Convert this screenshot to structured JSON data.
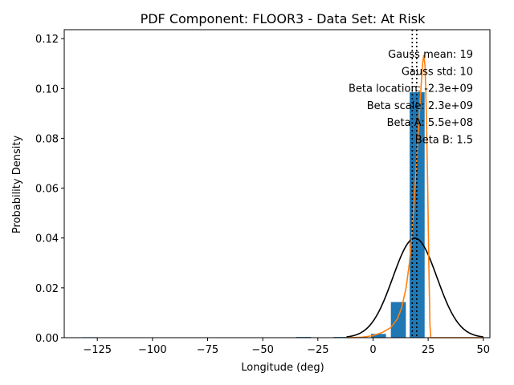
{
  "chart_data": {
    "type": "bar",
    "title": "PDF Component: FLOOR3 - Data Set: At Risk",
    "xlabel": "Longitude (deg)",
    "ylabel": "Probability Density",
    "xlim": [
      -140,
      53
    ],
    "ylim": [
      0,
      0.1236
    ],
    "x_ticks": [
      -125,
      -100,
      -75,
      -50,
      -25,
      0,
      25,
      50
    ],
    "x_tick_labels": [
      "−125",
      "−100",
      "−75",
      "−50",
      "−25",
      "0",
      "25",
      "50"
    ],
    "y_ticks": [
      0.0,
      0.02,
      0.04,
      0.06,
      0.08,
      0.1,
      0.12
    ],
    "y_tick_labels": [
      "0.00",
      "0.02",
      "0.04",
      "0.06",
      "0.08",
      "0.10",
      "0.12"
    ],
    "bin_width": 8.5,
    "bars": [
      {
        "center": -128.5,
        "value": 0.0002
      },
      {
        "center": -120.0,
        "value": 0.0
      },
      {
        "center": -111.5,
        "value": 0.0
      },
      {
        "center": -103.0,
        "value": 0.0
      },
      {
        "center": -94.5,
        "value": 0.0
      },
      {
        "center": -86.0,
        "value": 0.0
      },
      {
        "center": -77.5,
        "value": 0.0
      },
      {
        "center": -69.0,
        "value": 0.0
      },
      {
        "center": -60.5,
        "value": 0.0
      },
      {
        "center": -52.0,
        "value": 0.0
      },
      {
        "center": -43.5,
        "value": 0.0
      },
      {
        "center": -35.0,
        "value": 0.0
      },
      {
        "center": -31.5,
        "value": 0.0003
      },
      {
        "center": -23.0,
        "value": 0.0
      },
      {
        "center": -14.5,
        "value": 0.0003
      },
      {
        "center": -6.0,
        "value": 0.0003
      },
      {
        "center": 2.5,
        "value": 0.0015
      },
      {
        "center": 11.5,
        "value": 0.0143
      },
      {
        "center": 20.0,
        "value": 0.0985
      }
    ],
    "bar_color": "#1f77b4",
    "series": [
      {
        "name": "",
        "kind": "gaussian",
        "color": "#000000",
        "mean": 19,
        "std": 10,
        "x_range": [
          -12,
          50
        ]
      },
      {
        "name": "",
        "kind": "beta",
        "color": "#ff7f0e",
        "points": [
          [
            -12,
            0.0
          ],
          [
            -5,
            0.0002
          ],
          [
            0,
            0.0008
          ],
          [
            4,
            0.002
          ],
          [
            8,
            0.004
          ],
          [
            11,
            0.0075
          ],
          [
            13,
            0.012
          ],
          [
            15,
            0.02
          ],
          [
            16.5,
            0.03
          ],
          [
            17.5,
            0.04
          ],
          [
            18.5,
            0.053
          ],
          [
            19.5,
            0.067
          ],
          [
            20.5,
            0.082
          ],
          [
            21.5,
            0.097
          ],
          [
            22.5,
            0.11
          ],
          [
            23.0,
            0.1135
          ],
          [
            23.6,
            0.109
          ],
          [
            24.2,
            0.09
          ],
          [
            24.8,
            0.06
          ],
          [
            25.3,
            0.03
          ],
          [
            25.8,
            0.005
          ],
          [
            26.2,
            0.0
          ],
          [
            50,
            0.0
          ]
        ]
      }
    ],
    "vlines": [
      {
        "x": 17.8,
        "style": "dotted",
        "color": "#000000"
      },
      {
        "x": 19.8,
        "style": "dotted",
        "color": "#000000"
      }
    ],
    "annotations": [
      "Gauss mean: 19",
      "Gauss std: 10",
      "Beta location: -2.3e+09",
      "Beta scale: 2.3e+09",
      "Beta A: 5.5e+08",
      "Beta B: 1.5"
    ],
    "grid": false,
    "legend": "none"
  }
}
